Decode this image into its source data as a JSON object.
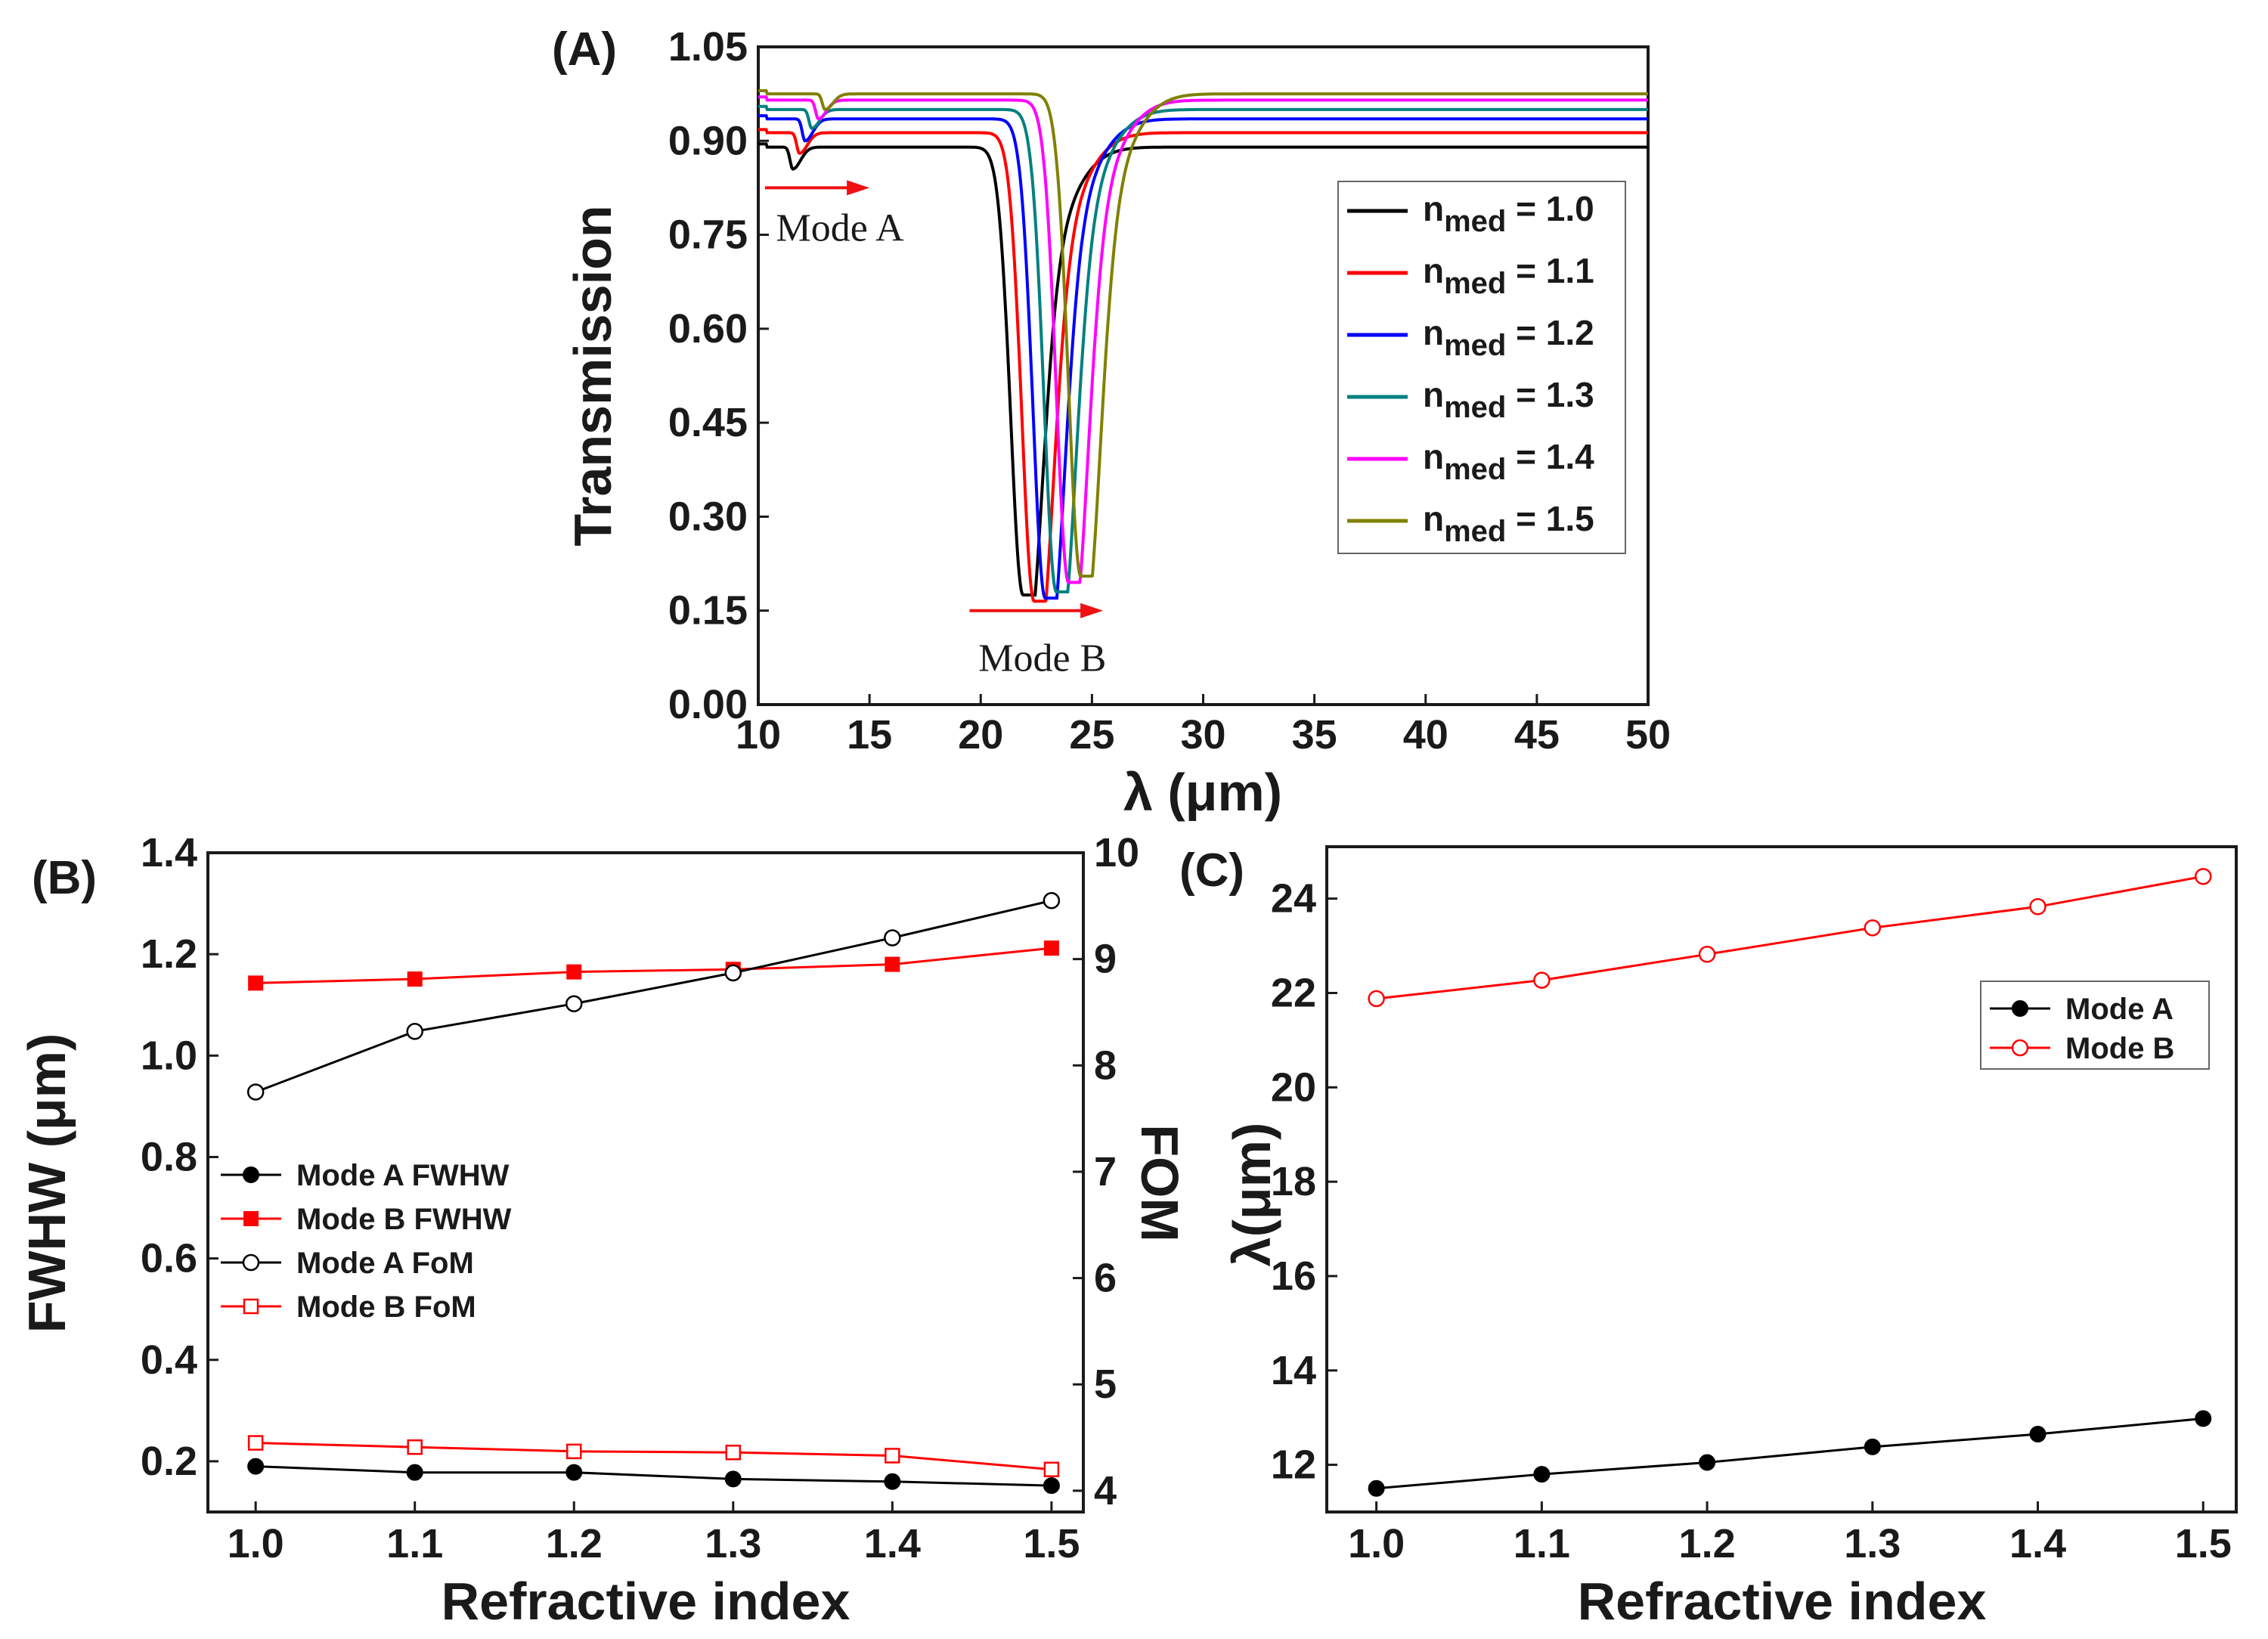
{
  "chart_data": [
    {
      "panel": "(A)",
      "type": "line",
      "xlabel": "λ (μm)",
      "ylabel": "Transmission",
      "xlim": [
        10,
        50
      ],
      "ylim": [
        0.0,
        1.05
      ],
      "xticks": [
        "10",
        "15",
        "20",
        "25",
        "30",
        "35",
        "40",
        "45",
        "50"
      ],
      "yticks": [
        "0.00",
        "0.15",
        "0.30",
        "0.45",
        "0.60",
        "0.75",
        "0.90",
        "1.05"
      ],
      "legend_position": "right",
      "annotations": [
        {
          "text": "Mode A",
          "arrow": "rightward",
          "x_data": [
            10.3,
            15.0
          ],
          "y_data": 0.825
        },
        {
          "text": "Mode B",
          "arrow": "rightward",
          "x_data": [
            19.5,
            25.5
          ],
          "y_data": 0.15
        }
      ],
      "series": [
        {
          "name": "n",
          "sub": "med",
          "suffix": " = 1.0",
          "color": "#000000",
          "baseline": 0.89,
          "dipA_x": 11.55,
          "dipA_min": 0.855,
          "dipB_x": 21.9,
          "dipB_min": 0.175
        },
        {
          "name": "n",
          "sub": "med",
          "suffix": " = 1.1",
          "color": "#ff0000",
          "baseline": 0.913,
          "dipA_x": 11.85,
          "dipA_min": 0.88,
          "dipB_x": 22.4,
          "dipB_min": 0.165
        },
        {
          "name": "n",
          "sub": "med",
          "suffix": " = 1.2",
          "color": "#0000ff",
          "baseline": 0.935,
          "dipA_x": 12.1,
          "dipA_min": 0.9,
          "dipB_x": 22.9,
          "dipB_min": 0.17
        },
        {
          "name": "n",
          "sub": "med",
          "suffix": " = 1.3",
          "color": "#008080",
          "baseline": 0.95,
          "dipA_x": 12.4,
          "dipA_min": 0.92,
          "dipB_x": 23.4,
          "dipB_min": 0.18
        },
        {
          "name": "n",
          "sub": "med",
          "suffix": " = 1.4",
          "color": "#ff00ff",
          "baseline": 0.965,
          "dipA_x": 12.7,
          "dipA_min": 0.935,
          "dipB_x": 23.95,
          "dipB_min": 0.195
        },
        {
          "name": "n",
          "sub": "med",
          "suffix": " = 1.5",
          "color": "#808000",
          "baseline": 0.975,
          "dipA_x": 13.0,
          "dipA_min": 0.95,
          "dipB_x": 24.5,
          "dipB_min": 0.205
        }
      ]
    },
    {
      "panel": "(B)",
      "type": "line",
      "xlabel": "Refractive index",
      "ylabel": "FWHW (μm)",
      "y2label": "FOM",
      "x": [
        1.0,
        1.1,
        1.2,
        1.3,
        1.4,
        1.5
      ],
      "xlim": [
        0.97,
        1.52
      ],
      "ylim": [
        0.1,
        1.4
      ],
      "y2lim": [
        3.8,
        10
      ],
      "xticks": [
        "1.0",
        "1.1",
        "1.2",
        "1.3",
        "1.4",
        "1.5"
      ],
      "yticks": [
        "0.2",
        "0.4",
        "0.6",
        "0.8",
        "1.0",
        "1.2",
        "1.4"
      ],
      "y2ticks": [
        "4",
        "5",
        "6",
        "7",
        "8",
        "9",
        "10"
      ],
      "legend_position": "center-left",
      "series": [
        {
          "name": "Mode A FWHW",
          "axis": "left",
          "color": "#000000",
          "marker": "filled-circle",
          "values": [
            0.19,
            0.178,
            0.178,
            0.165,
            0.16,
            0.152
          ]
        },
        {
          "name": "Mode B FWHW",
          "axis": "left",
          "color": "#ff0000",
          "marker": "filled-square",
          "values": [
            1.143,
            1.151,
            1.165,
            1.17,
            1.18,
            1.212
          ]
        },
        {
          "name": "Mode A FoM",
          "axis": "right",
          "color": "#000000",
          "marker": "open-circle",
          "values": [
            7.75,
            8.32,
            8.58,
            8.87,
            9.2,
            9.55
          ]
        },
        {
          "name": "Mode B FoM",
          "axis": "right",
          "color": "#ff0000",
          "marker": "open-square",
          "values": [
            4.45,
            4.41,
            4.37,
            4.36,
            4.33,
            4.2
          ]
        }
      ]
    },
    {
      "panel": "(C)",
      "type": "line",
      "xlabel": "Refractive index",
      "ylabel": "λ(μm)",
      "x": [
        1.0,
        1.1,
        1.2,
        1.3,
        1.4,
        1.5
      ],
      "xlim": [
        0.97,
        1.52
      ],
      "ylim": [
        11,
        25.1
      ],
      "xticks": [
        "1.0",
        "1.1",
        "1.2",
        "1.3",
        "1.4",
        "1.5"
      ],
      "yticks": [
        "12",
        "14",
        "16",
        "18",
        "20",
        "22",
        "24"
      ],
      "legend_position": "top-right",
      "series": [
        {
          "name": "Mode A",
          "color": "#000000",
          "marker": "filled-circle",
          "values": [
            11.5,
            11.8,
            12.05,
            12.38,
            12.65,
            12.98
          ]
        },
        {
          "name": "Mode B",
          "color": "#ff0000",
          "marker": "open-circle",
          "values": [
            21.88,
            22.27,
            22.82,
            23.38,
            23.83,
            24.47
          ]
        }
      ]
    }
  ]
}
